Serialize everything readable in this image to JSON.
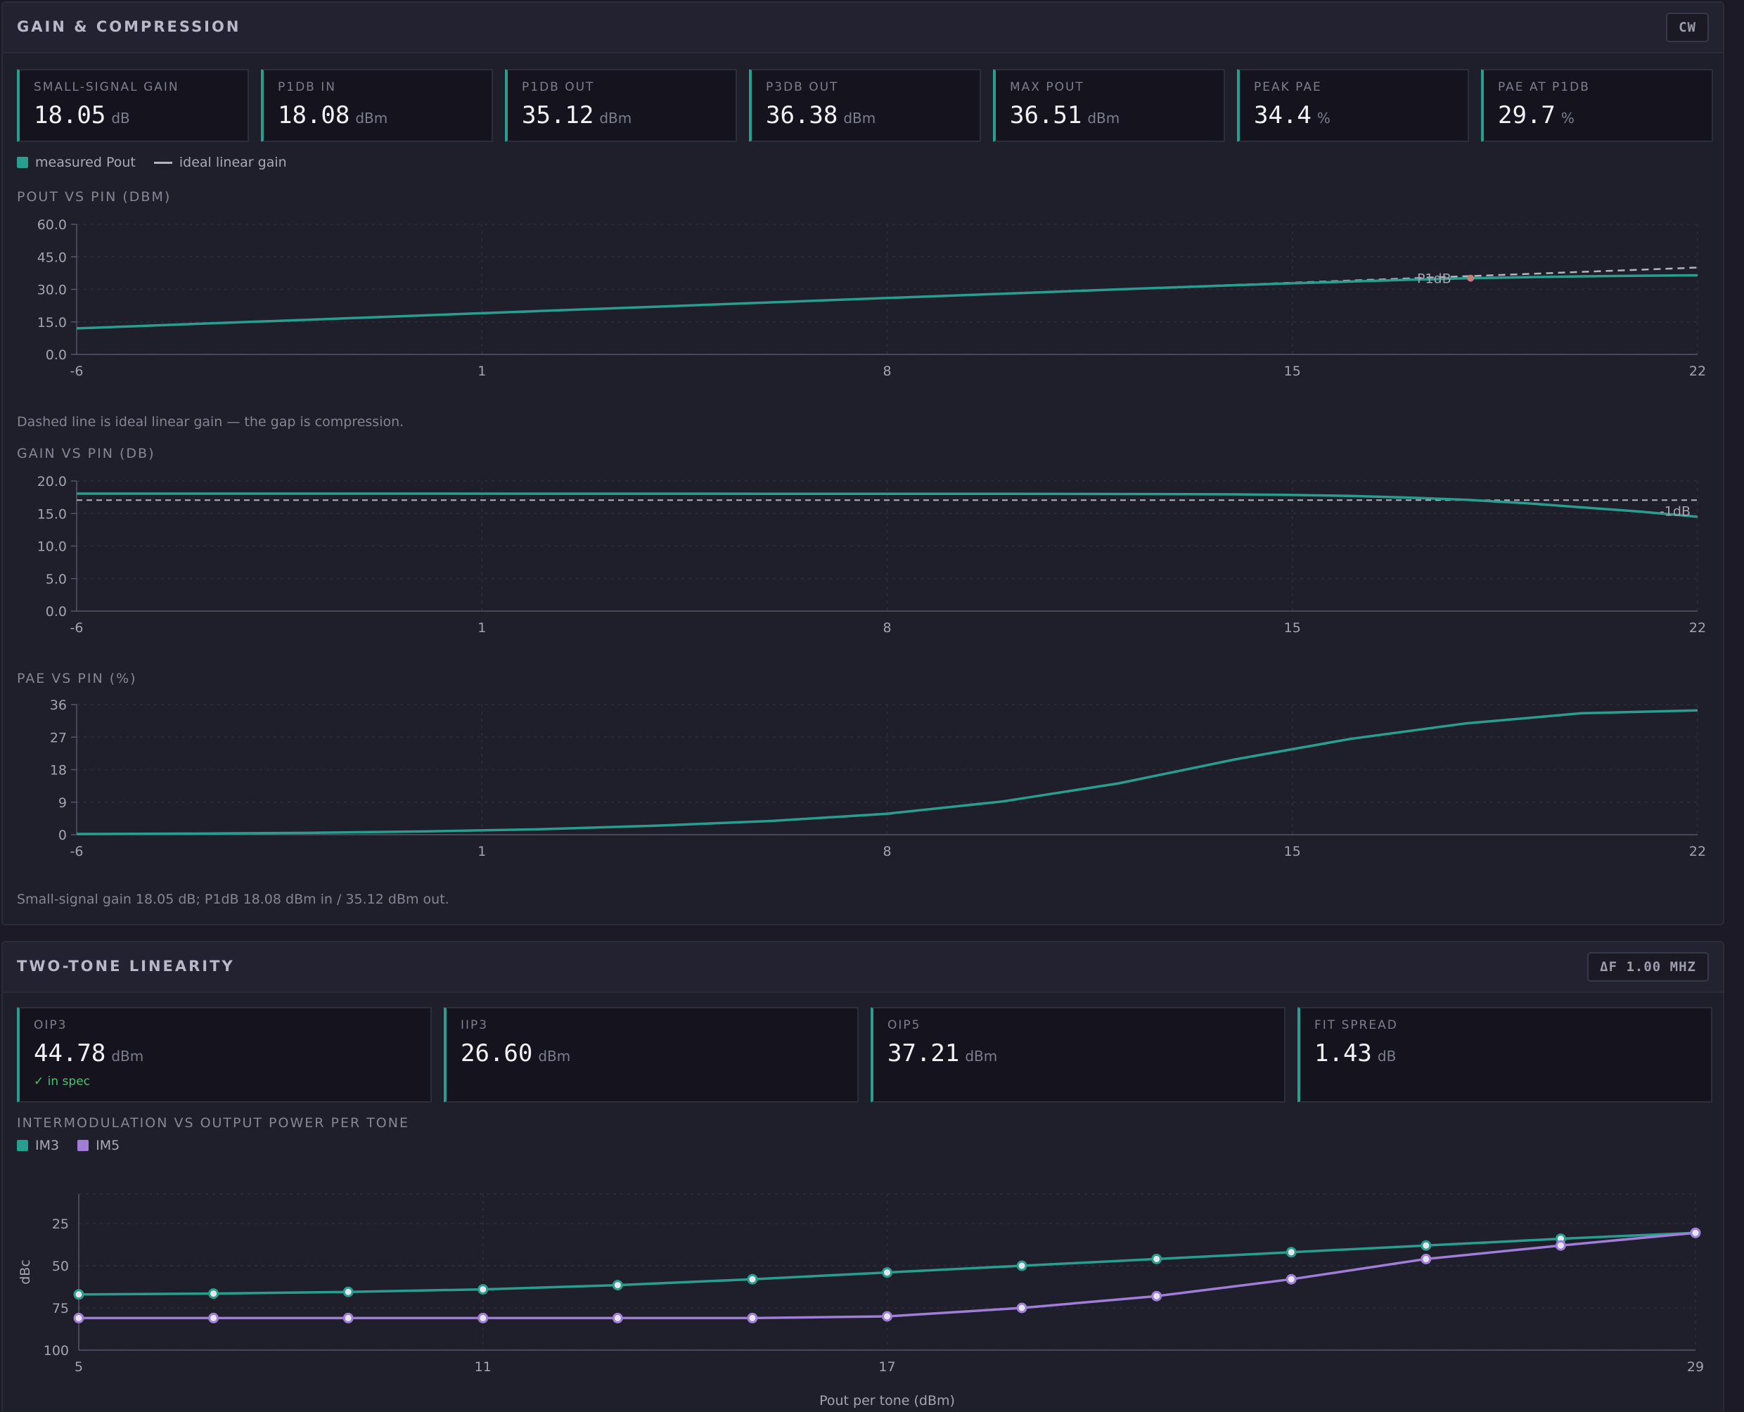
{
  "gain": {
    "title": "GAIN & COMPRESSION",
    "badge": "CW",
    "metrics": [
      {
        "label": "SMALL-SIGNAL GAIN",
        "value": "18.05",
        "unit": "dB"
      },
      {
        "label": "P1DB IN",
        "value": "18.08",
        "unit": "dBm"
      },
      {
        "label": "P1DB OUT",
        "value": "35.12",
        "unit": "dBm"
      },
      {
        "label": "P3DB OUT",
        "value": "36.38",
        "unit": "dBm"
      },
      {
        "label": "MAX POUT",
        "value": "36.51",
        "unit": "dBm"
      },
      {
        "label": "PEAK PAE",
        "value": "34.4",
        "unit": "%"
      },
      {
        "label": "PAE AT P1DB",
        "value": "29.7",
        "unit": "%"
      }
    ],
    "legend": {
      "measured": "measured Pout",
      "ideal": "ideal linear gain"
    },
    "pout_label": "POUT VS PIN (DBM)",
    "pout_note": "Dashed line is ideal linear gain — the gap is compression.",
    "gain_label": "GAIN VS PIN (DB)",
    "pae_label": "PAE VS PIN (%)",
    "summary": "Small-signal gain 18.05 dB; P1dB 18.08 dBm in / 35.12 dBm out."
  },
  "twotone": {
    "title": "TWO-TONE LINEARITY",
    "badge": "ΔF 1.00 MHZ",
    "metrics": [
      {
        "label": "OIP3",
        "value": "44.78",
        "unit": "dBm",
        "note": "✓ in spec"
      },
      {
        "label": "IIP3",
        "value": "26.60",
        "unit": "dBm"
      },
      {
        "label": "OIP5",
        "value": "37.21",
        "unit": "dBm"
      },
      {
        "label": "FIT SPREAD",
        "value": "1.43",
        "unit": "dB"
      }
    ],
    "chart_label": "INTERMODULATION VS OUTPUT POWER PER TONE",
    "legend": {
      "im3": "IM3",
      "im5": "IM5"
    }
  },
  "colors": {
    "teal": "#2a9e8e",
    "purple": "#a07ed8",
    "dashed": "#b4b4c0",
    "marker": "#c77d74"
  },
  "chart_data": [
    {
      "type": "line",
      "title": "POUT VS PIN (DBM)",
      "x_ticks": [
        "-6",
        "1",
        "8",
        "15",
        "22"
      ],
      "y_ticks": [
        "60.0",
        "45.0",
        "30.0",
        "15.0",
        "0.0"
      ],
      "xlim": [
        -6,
        22
      ],
      "ylim": [
        0,
        60
      ],
      "annotation": "P1dB",
      "annotation_x": 18.08,
      "series": [
        {
          "name": "measured Pout",
          "x": [
            -6,
            -4,
            -2,
            0,
            2,
            4,
            6,
            8,
            10,
            12,
            14,
            15,
            16,
            17,
            18,
            19,
            20,
            21,
            22
          ],
          "y": [
            12.0,
            14.0,
            16.0,
            18.0,
            20.0,
            22.0,
            24.0,
            26.0,
            28.0,
            30.0,
            31.9,
            32.8,
            33.6,
            34.4,
            35.1,
            35.6,
            36.0,
            36.3,
            36.5
          ]
        },
        {
          "name": "ideal linear gain",
          "x": [
            -6,
            22
          ],
          "y": [
            12.05,
            40.05
          ]
        }
      ]
    },
    {
      "type": "line",
      "title": "GAIN VS PIN (DB)",
      "x_ticks": [
        "-6",
        "1",
        "8",
        "15",
        "22"
      ],
      "y_ticks": [
        "20.0",
        "15.0",
        "10.0",
        "5.0",
        "0.0"
      ],
      "xlim": [
        -6,
        22
      ],
      "ylim": [
        0,
        20
      ],
      "ref_label": "-1dB",
      "ref_value": 17.05,
      "series": [
        {
          "name": "gain",
          "x": [
            -6,
            -2,
            2,
            6,
            10,
            12,
            14,
            15,
            16,
            17,
            18,
            19,
            20,
            21,
            22
          ],
          "y": [
            18.05,
            18.05,
            18.04,
            18.03,
            18.02,
            18.0,
            17.95,
            17.85,
            17.7,
            17.45,
            17.1,
            16.6,
            15.95,
            15.3,
            14.5
          ]
        }
      ]
    },
    {
      "type": "line",
      "title": "PAE VS PIN (%)",
      "x_ticks": [
        "-6",
        "1",
        "8",
        "15",
        "22"
      ],
      "y_ticks": [
        "36",
        "27",
        "18",
        "9",
        "0"
      ],
      "xlim": [
        -6,
        22
      ],
      "ylim": [
        0,
        36
      ],
      "series": [
        {
          "name": "PAE",
          "x": [
            -6,
            -4,
            -2,
            0,
            2,
            4,
            6,
            8,
            10,
            12,
            14,
            16,
            18,
            20,
            22
          ],
          "y": [
            0.2,
            0.3,
            0.5,
            0.9,
            1.5,
            2.5,
            3.8,
            5.8,
            9.2,
            14.2,
            20.8,
            26.5,
            30.8,
            33.6,
            34.4
          ]
        }
      ]
    },
    {
      "type": "line",
      "title": "INTERMODULATION VS OUTPUT POWER PER TONE",
      "xlabel": "Pout per tone (dBm)",
      "ylabel": "dBc",
      "x_ticks": [
        "5",
        "11",
        "17",
        "29"
      ],
      "y_ticks": [
        "25",
        "50",
        "75",
        "100"
      ],
      "xlim": [
        5,
        29
      ],
      "ylim": [
        100,
        0
      ],
      "series": [
        {
          "name": "IM3",
          "x": [
            5,
            7,
            9,
            11,
            13,
            15,
            17,
            19,
            21,
            23,
            25,
            27,
            29
          ],
          "y": [
            67,
            66.5,
            65.5,
            64,
            61.5,
            58,
            54,
            50,
            46,
            42,
            38,
            34,
            30.5
          ]
        },
        {
          "name": "IM5",
          "x": [
            5,
            7,
            9,
            11,
            13,
            15,
            17,
            19,
            21,
            23,
            25,
            27,
            29
          ],
          "y": [
            81,
            81,
            81,
            81,
            81,
            81,
            80,
            75,
            68,
            58,
            46,
            38,
            30.5
          ]
        }
      ]
    }
  ]
}
